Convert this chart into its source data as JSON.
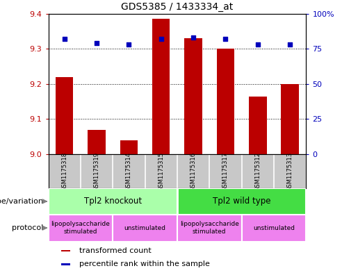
{
  "title": "GDS5385 / 1433334_at",
  "samples": [
    "GSM1175318",
    "GSM1175319",
    "GSM1175314",
    "GSM1175315",
    "GSM1175316",
    "GSM1175317",
    "GSM1175312",
    "GSM1175313"
  ],
  "bar_values": [
    9.22,
    9.07,
    9.04,
    9.385,
    9.33,
    9.3,
    9.165,
    9.2
  ],
  "percentile_values": [
    82,
    79,
    78,
    82,
    83,
    82,
    78,
    78
  ],
  "ylim_left": [
    9.0,
    9.4
  ],
  "ylim_right": [
    0,
    100
  ],
  "yticks_left": [
    9.0,
    9.1,
    9.2,
    9.3,
    9.4
  ],
  "yticks_right": [
    0,
    25,
    50,
    75,
    100
  ],
  "bar_color": "#BB0000",
  "dot_color": "#0000BB",
  "plot_bg": "#ffffff",
  "groups": [
    {
      "label": "Tpl2 knockout",
      "start": 0,
      "end": 4,
      "color": "#AAFFAA"
    },
    {
      "label": "Tpl2 wild type",
      "start": 4,
      "end": 8,
      "color": "#44DD44"
    }
  ],
  "protocols": [
    {
      "label": "lipopolysaccharide\nstimulated",
      "start": 0,
      "end": 2,
      "color": "#EE82EE"
    },
    {
      "label": "unstimulated",
      "start": 2,
      "end": 4,
      "color": "#EE82EE"
    },
    {
      "label": "lipopolysaccharide\nstimulated",
      "start": 4,
      "end": 6,
      "color": "#EE82EE"
    },
    {
      "label": "unstimulated",
      "start": 6,
      "end": 8,
      "color": "#EE82EE"
    }
  ],
  "sample_bg": "#C8C8C8",
  "sample_divider": "#FFFFFF",
  "geno_label": "genotype/variation",
  "proto_label": "protocol",
  "legend_items": [
    {
      "label": "transformed count",
      "color": "#BB0000"
    },
    {
      "label": "percentile rank within the sample",
      "color": "#0000BB"
    }
  ],
  "bar_width": 0.55
}
